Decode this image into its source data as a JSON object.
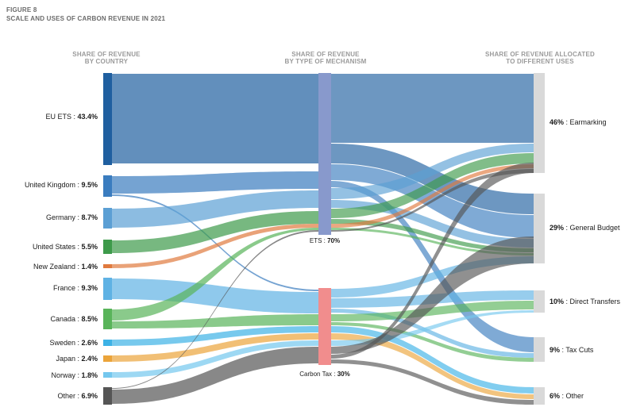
{
  "figure": {
    "number": "FIGURE 8",
    "title": "SCALE AND USES OF CARBON REVENUE IN 2021"
  },
  "columns": {
    "country": [
      "SHARE OF REVENUE",
      "BY COUNTRY"
    ],
    "mechanism": [
      "SHARE OF REVENUE",
      "BY TYPE OF MECHANISM"
    ],
    "uses": [
      "SHARE OF REVENUE ALLOCATED",
      "TO DIFFERENT USES"
    ]
  },
  "chart_data": {
    "type": "sankey",
    "countries": [
      {
        "name": "EU ETS",
        "value": "43.4%",
        "color": "#1f5fa0"
      },
      {
        "name": "United Kingdom",
        "value": "9.5%",
        "color": "#3a7cbf"
      },
      {
        "name": "Germany",
        "value": "8.7%",
        "color": "#5b9fd4"
      },
      {
        "name": "United States",
        "value": "5.5%",
        "color": "#3d9a4a"
      },
      {
        "name": "New Zealand",
        "value": "1.4%",
        "color": "#e07a3e"
      },
      {
        "name": "France",
        "value": "9.3%",
        "color": "#5fb2e4"
      },
      {
        "name": "Canada",
        "value": "8.5%",
        "color": "#59b45a"
      },
      {
        "name": "Sweden",
        "value": "2.6%",
        "color": "#3db2e6"
      },
      {
        "name": "Japan",
        "value": "2.4%",
        "color": "#eba43a"
      },
      {
        "name": "Norway",
        "value": "1.8%",
        "color": "#74c7ee"
      },
      {
        "name": "Other",
        "value": "6.9%",
        "color": "#555555"
      }
    ],
    "mechanisms": [
      {
        "name": "ETS",
        "value": "70%",
        "color": "#8899cc"
      },
      {
        "name": "Carbon Tax",
        "value": "30%",
        "color": "#f18d8d"
      }
    ],
    "uses": [
      {
        "name": "Earmarking",
        "value": "46%"
      },
      {
        "name": "General Budget",
        "value": "29%"
      },
      {
        "name": "Direct Transfers",
        "value": "10%"
      },
      {
        "name": "Tax Cuts",
        "value": "9%"
      },
      {
        "name": "Other",
        "value": "6%"
      }
    ],
    "flows_country_to_mechanism": [
      {
        "source": "EU ETS",
        "target": "ETS"
      },
      {
        "source": "United Kingdom",
        "target": "ETS"
      },
      {
        "source": "United Kingdom",
        "target": "Carbon Tax"
      },
      {
        "source": "Germany",
        "target": "ETS"
      },
      {
        "source": "United States",
        "target": "ETS"
      },
      {
        "source": "New Zealand",
        "target": "ETS"
      },
      {
        "source": "France",
        "target": "Carbon Tax"
      },
      {
        "source": "Canada",
        "target": "ETS"
      },
      {
        "source": "Canada",
        "target": "Carbon Tax"
      },
      {
        "source": "Sweden",
        "target": "Carbon Tax"
      },
      {
        "source": "Japan",
        "target": "Carbon Tax"
      },
      {
        "source": "Norway",
        "target": "Carbon Tax"
      },
      {
        "source": "Other",
        "target": "ETS"
      },
      {
        "source": "Other",
        "target": "Carbon Tax"
      }
    ]
  }
}
